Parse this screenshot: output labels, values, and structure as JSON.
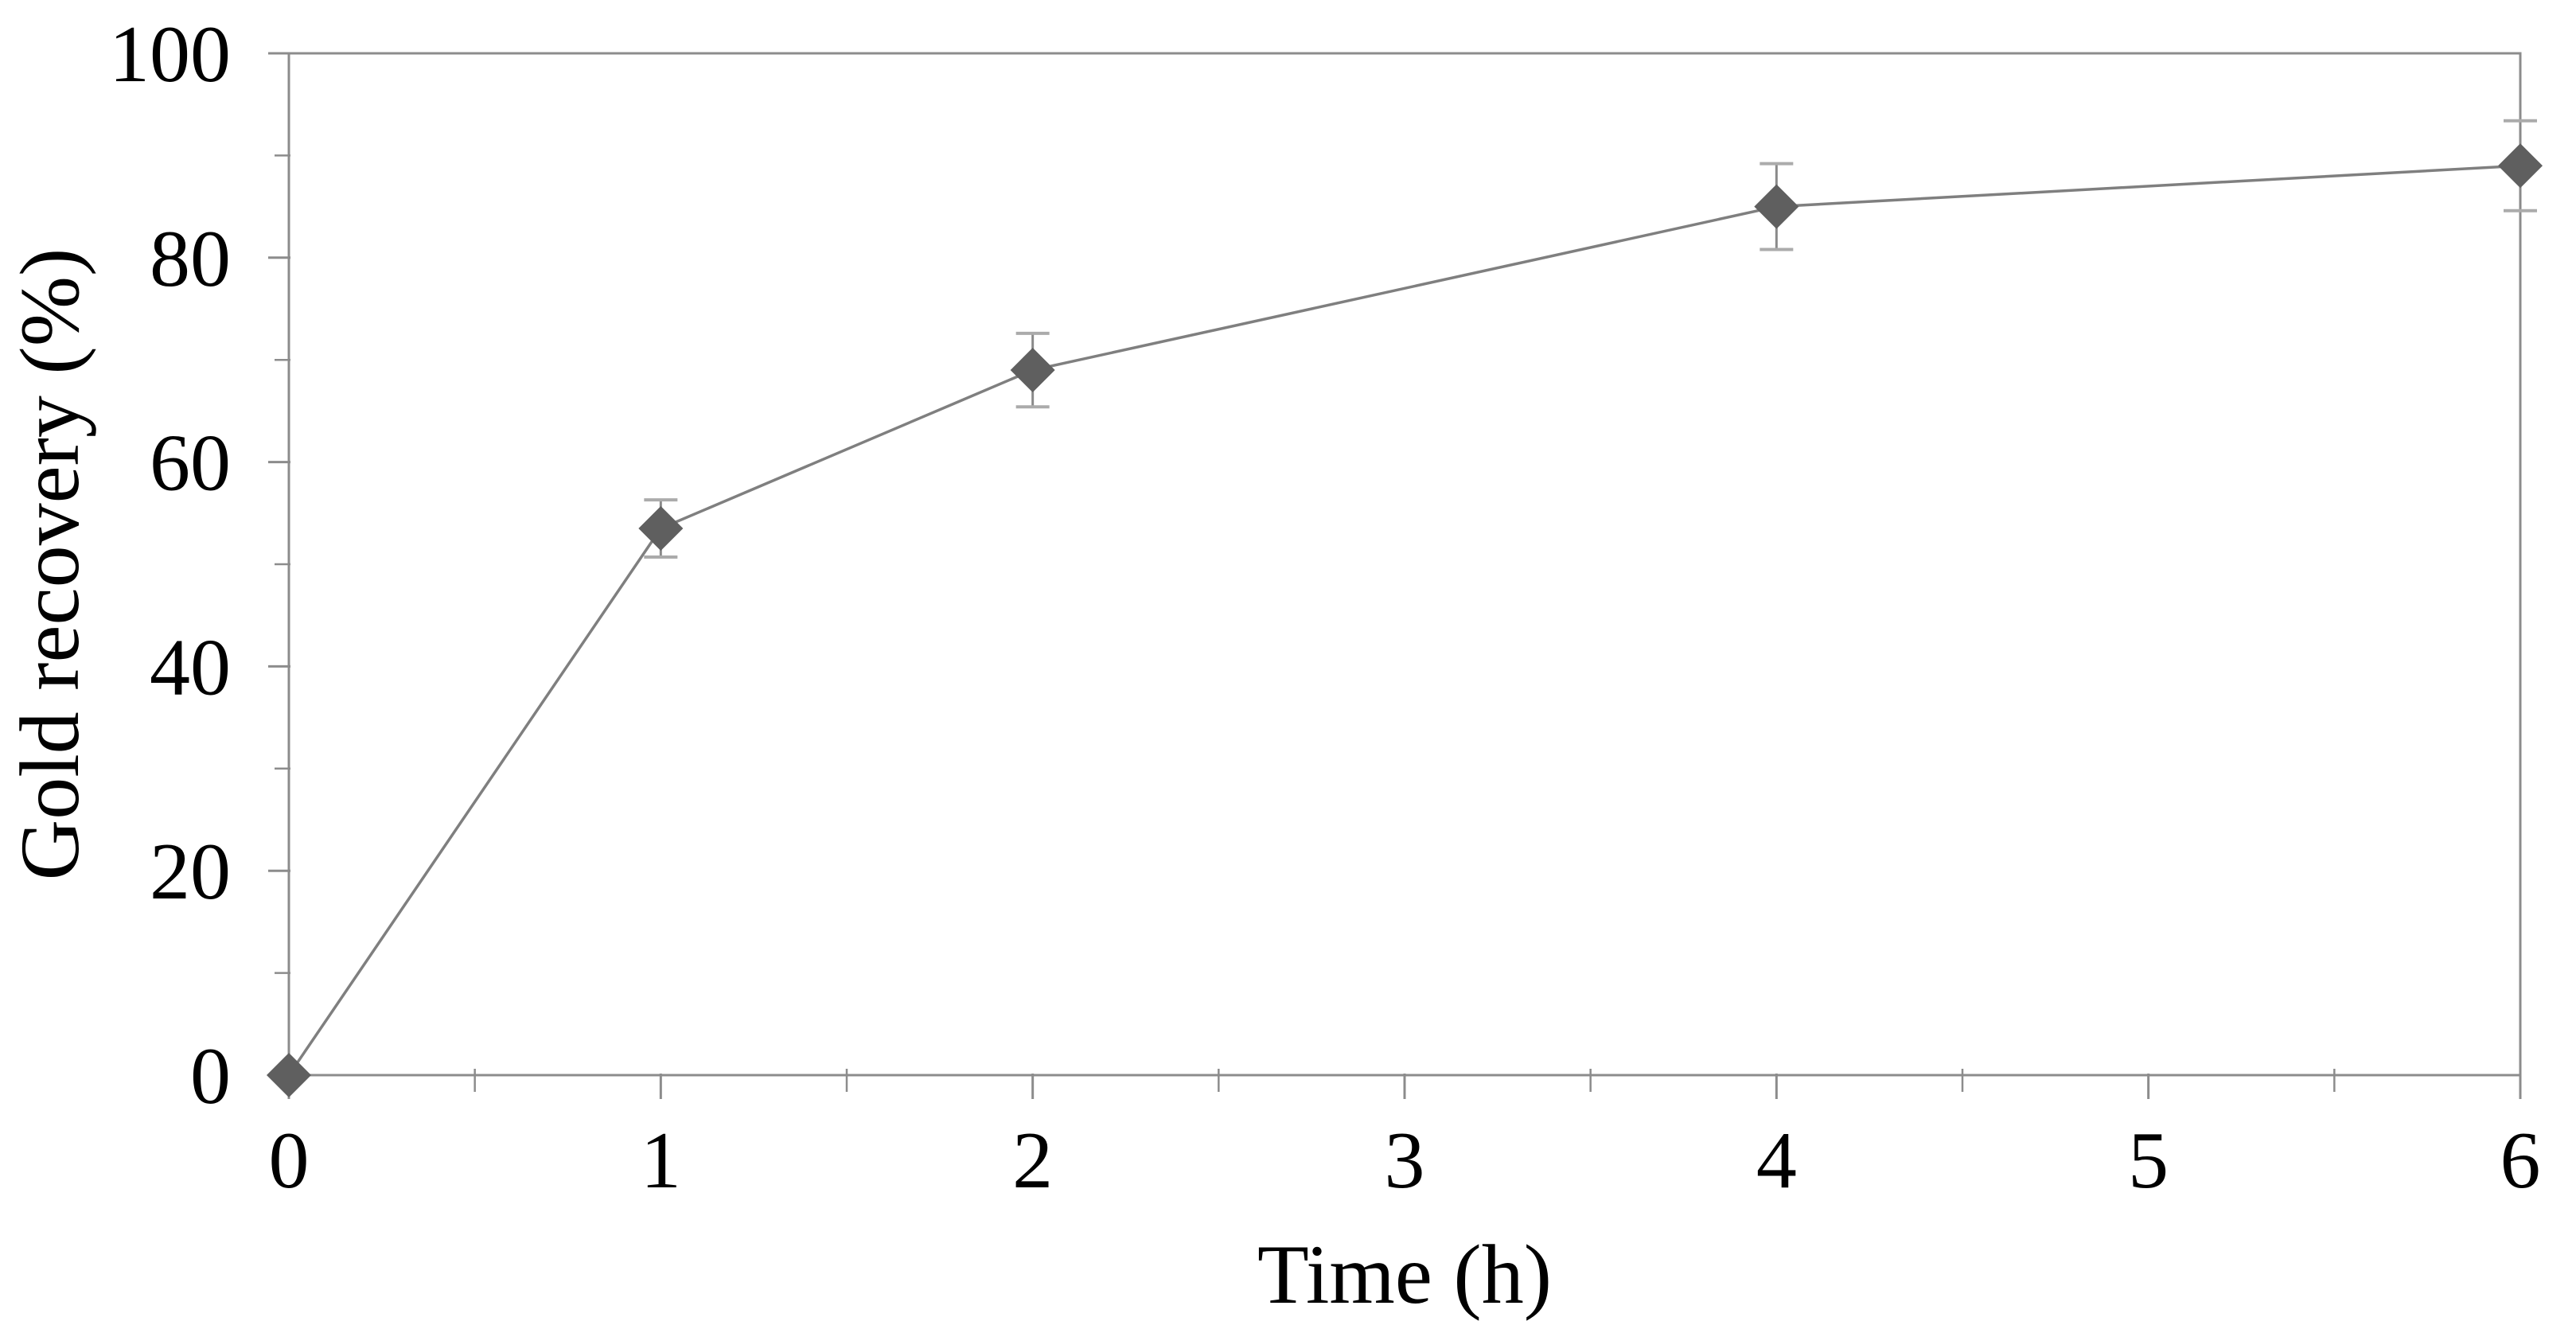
{
  "figure": {
    "background": "#ffffff"
  },
  "chart_data": {
    "type": "line",
    "title": "",
    "xlabel": "Time (h)",
    "ylabel": "Gold recovery (%)",
    "series": [
      {
        "name": "Gold recovery",
        "x": [
          0,
          1,
          2,
          4,
          6
        ],
        "y": [
          0,
          53.5,
          69,
          85,
          89
        ],
        "yerr": [
          0,
          2.8,
          3.6,
          4.2,
          4.4
        ]
      }
    ],
    "xlim": [
      0,
      6
    ],
    "ylim": [
      0,
      100
    ],
    "x_major_ticks": [
      0,
      1,
      2,
      3,
      4,
      5,
      6
    ],
    "x_tick_labels": [
      "0",
      "1",
      "2",
      "3",
      "4",
      "5",
      "6"
    ],
    "x_minor_ticks": [
      0.5,
      1.5,
      2.5,
      3.5,
      4.5,
      5.5
    ],
    "y_major_ticks": [
      0,
      20,
      40,
      60,
      80,
      100
    ],
    "y_tick_labels": [
      "0",
      "20",
      "40",
      "60",
      "80",
      "100"
    ],
    "y_minor_ticks": [
      10,
      30,
      50,
      70,
      90
    ],
    "grid": false,
    "legend": false,
    "marker": "diamond",
    "colors": {
      "marker": "#5f5f5f",
      "line": "#7f7f7f",
      "error_bar": "#8a8a8a",
      "error_cap": "#ababab",
      "axis": "#8c8c8c",
      "text": "#000000"
    }
  }
}
